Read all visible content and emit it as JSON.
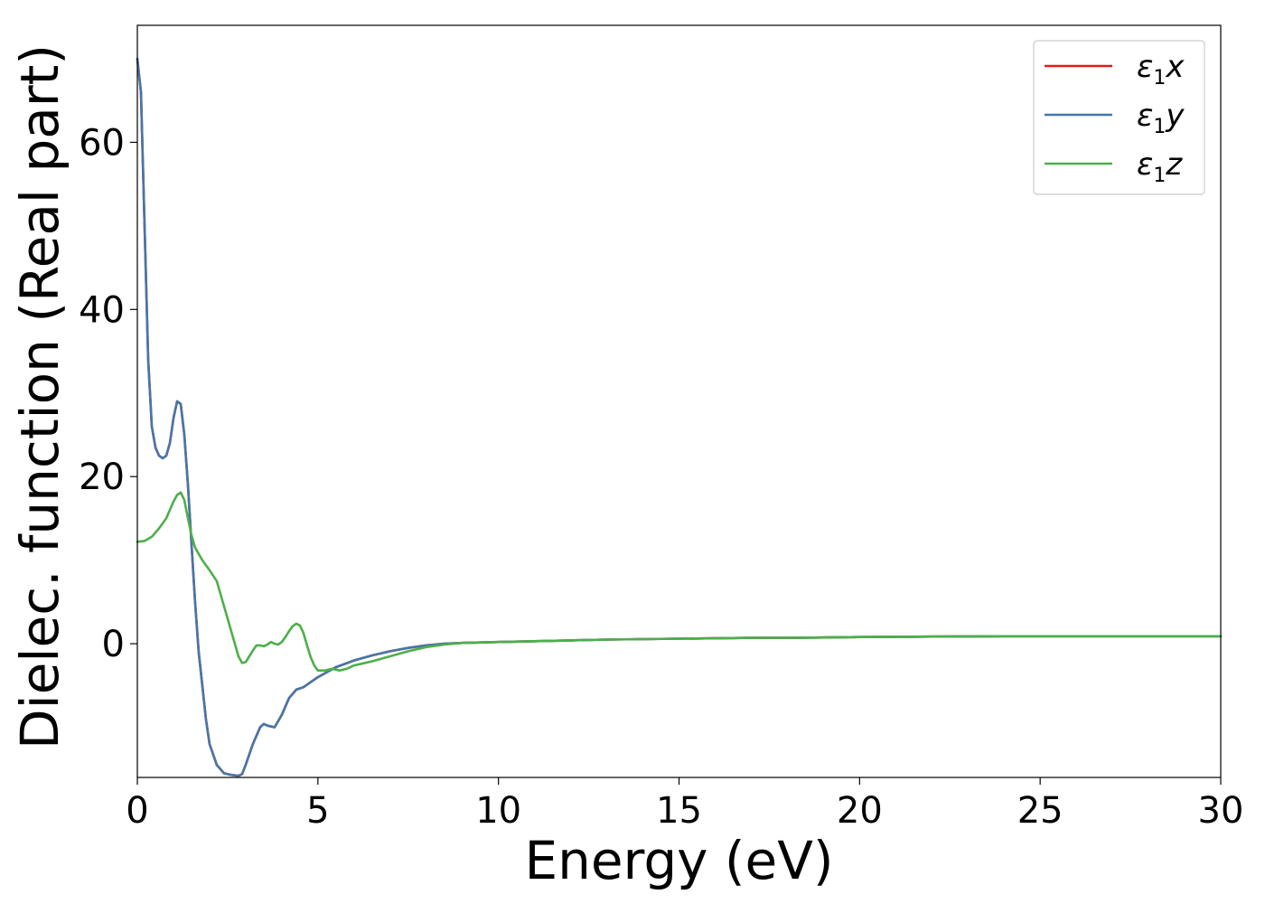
{
  "chart_data": {
    "type": "line",
    "title": "",
    "xlabel": "Energy (eV)",
    "ylabel": "Dielec. function (Real part)",
    "xlim": [
      0,
      30
    ],
    "ylim": [
      -16,
      74
    ],
    "xticks": [
      0,
      5,
      10,
      15,
      20,
      25,
      30
    ],
    "yticks": [
      0,
      20,
      40,
      60
    ],
    "grid": false,
    "legend_position": "top-right",
    "series": [
      {
        "name": "ε1x",
        "label_main": "ε",
        "label_sub": "1",
        "label_tail": "x",
        "color": "#e41a1c",
        "x": [
          0,
          0.1,
          0.2,
          0.3,
          0.4,
          0.5,
          0.6,
          0.7,
          0.8,
          0.9,
          1.0,
          1.1,
          1.2,
          1.3,
          1.4,
          1.5,
          1.6,
          1.7,
          1.8,
          1.9,
          2.0,
          2.2,
          2.4,
          2.6,
          2.8,
          2.9,
          3.0,
          3.2,
          3.4,
          3.5,
          3.6,
          3.8,
          4.0,
          4.2,
          4.4,
          4.6,
          4.8,
          5.0,
          5.5,
          6.0,
          6.5,
          7.0,
          7.5,
          8.0,
          8.5,
          9.0,
          9.5,
          10,
          11,
          12,
          13,
          14,
          15,
          16,
          17,
          18,
          19,
          20,
          22,
          24,
          26,
          28,
          30
        ],
        "y": [
          70,
          66,
          50,
          34,
          26,
          23.5,
          22.5,
          22.2,
          22.5,
          24,
          27,
          29,
          28.7,
          25,
          19,
          12,
          5,
          -1,
          -5,
          -9,
          -12,
          -14.5,
          -15.5,
          -15.7,
          -15.8,
          -15.6,
          -14.5,
          -12,
          -10,
          -9.6,
          -9.8,
          -10,
          -8.5,
          -6.5,
          -5.5,
          -5.2,
          -4.6,
          -4,
          -2.8,
          -2.0,
          -1.4,
          -0.9,
          -0.5,
          -0.2,
          0.0,
          0.1,
          0.15,
          0.2,
          0.3,
          0.4,
          0.5,
          0.55,
          0.6,
          0.65,
          0.7,
          0.7,
          0.75,
          0.8,
          0.85,
          0.9,
          0.9,
          0.9,
          0.9
        ]
      },
      {
        "name": "ε1y",
        "label_main": "ε",
        "label_sub": "1",
        "label_tail": "y",
        "color": "#4477aa",
        "x": [
          0,
          0.1,
          0.2,
          0.3,
          0.4,
          0.5,
          0.6,
          0.7,
          0.8,
          0.9,
          1.0,
          1.1,
          1.2,
          1.3,
          1.4,
          1.5,
          1.6,
          1.7,
          1.8,
          1.9,
          2.0,
          2.2,
          2.4,
          2.6,
          2.8,
          2.9,
          3.0,
          3.2,
          3.4,
          3.5,
          3.6,
          3.8,
          4.0,
          4.2,
          4.4,
          4.6,
          4.8,
          5.0,
          5.5,
          6.0,
          6.5,
          7.0,
          7.5,
          8.0,
          8.5,
          9.0,
          9.5,
          10,
          11,
          12,
          13,
          14,
          15,
          16,
          17,
          18,
          19,
          20,
          22,
          24,
          26,
          28,
          30
        ],
        "y": [
          70,
          66,
          50,
          34,
          26,
          23.5,
          22.5,
          22.2,
          22.5,
          24,
          27,
          29,
          28.7,
          25,
          19,
          12,
          5,
          -1,
          -5,
          -9,
          -12,
          -14.5,
          -15.5,
          -15.7,
          -15.8,
          -15.6,
          -14.5,
          -12,
          -10,
          -9.6,
          -9.8,
          -10,
          -8.5,
          -6.5,
          -5.5,
          -5.2,
          -4.6,
          -4,
          -2.8,
          -2.0,
          -1.4,
          -0.9,
          -0.5,
          -0.2,
          0.0,
          0.1,
          0.15,
          0.2,
          0.3,
          0.4,
          0.5,
          0.55,
          0.6,
          0.65,
          0.7,
          0.7,
          0.75,
          0.8,
          0.85,
          0.9,
          0.9,
          0.9,
          0.9
        ]
      },
      {
        "name": "ε1z",
        "label_main": "ε",
        "label_sub": "1",
        "label_tail": "z",
        "color": "#4daf4a",
        "x": [
          0,
          0.2,
          0.4,
          0.6,
          0.8,
          1.0,
          1.1,
          1.2,
          1.3,
          1.4,
          1.5,
          1.6,
          1.8,
          2.0,
          2.2,
          2.4,
          2.6,
          2.8,
          2.9,
          3.0,
          3.1,
          3.2,
          3.3,
          3.4,
          3.5,
          3.6,
          3.7,
          3.8,
          3.9,
          4.0,
          4.1,
          4.2,
          4.3,
          4.4,
          4.5,
          4.6,
          4.7,
          4.8,
          4.9,
          5.0,
          5.2,
          5.4,
          5.6,
          5.8,
          6.0,
          6.2,
          6.5,
          7.0,
          7.5,
          8.0,
          8.5,
          9.0,
          9.5,
          10,
          11,
          12,
          13,
          14,
          15,
          16,
          17,
          18,
          19,
          20,
          22,
          24,
          26,
          28,
          30
        ],
        "y": [
          12.2,
          12.3,
          12.8,
          13.8,
          15,
          17,
          17.8,
          18.1,
          17.2,
          15,
          13,
          11.5,
          10,
          8.8,
          7.5,
          4.5,
          1.5,
          -1.5,
          -2.3,
          -2.2,
          -1.5,
          -0.8,
          -0.2,
          -0.2,
          -0.3,
          -0.1,
          0.2,
          0.0,
          -0.1,
          0.2,
          0.8,
          1.5,
          2.1,
          2.4,
          2.2,
          1.3,
          -0.2,
          -1.6,
          -2.6,
          -3.2,
          -3.2,
          -3.0,
          -3.2,
          -3.0,
          -2.6,
          -2.4,
          -2.1,
          -1.5,
          -0.9,
          -0.4,
          -0.1,
          0.1,
          0.15,
          0.2,
          0.3,
          0.4,
          0.5,
          0.55,
          0.6,
          0.65,
          0.7,
          0.7,
          0.75,
          0.8,
          0.85,
          0.9,
          0.9,
          0.9,
          0.9
        ]
      }
    ]
  }
}
